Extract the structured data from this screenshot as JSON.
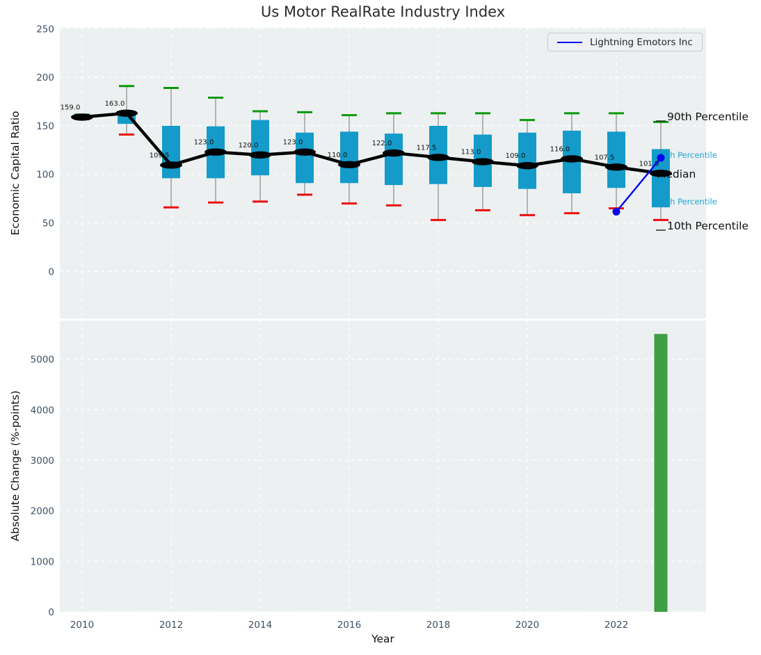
{
  "title": "Us Motor RealRate Industry Index",
  "legend": {
    "label": "Lightning Emotors Inc"
  },
  "colors": {
    "panel_bg": "#edf0f1",
    "grid": "#ffffff",
    "tick_label": "#3e5064",
    "box_fill": "#149bca",
    "whisker": "#8a8a8a",
    "cap_high": "#0a9a0a",
    "cap_low": "#ec0d0d",
    "median_line": "#000000",
    "company_blue": "#0202ee",
    "annotation_cyan": "#1ea7d9",
    "annotation_black": "#101010",
    "bar_green": "#3f9e44"
  },
  "chart_data": [
    {
      "type": "boxplot",
      "panel": "top",
      "title": "Us Motor RealRate Industry Index",
      "ylabel": "Economic Capital Ratio",
      "yticks": [
        0,
        50,
        100,
        150,
        200,
        250
      ],
      "ylim": [
        -48.5,
        251
      ],
      "grid": true,
      "legend_position": "upper right",
      "boxes": [
        {
          "year": 2010,
          "p10": 157,
          "q1": 158,
          "median": 159.0,
          "q3": 160.5,
          "p90": 161.5,
          "label": "159.0"
        },
        {
          "year": 2011,
          "p10": 141,
          "q1": 152,
          "median": 163.0,
          "q3": 162,
          "p90": 191,
          "label": "163.0"
        },
        {
          "year": 2012,
          "p10": 66,
          "q1": 96,
          "median": 109.5,
          "q3": 150,
          "p90": 189,
          "label": "109.5"
        },
        {
          "year": 2013,
          "p10": 71,
          "q1": 96,
          "median": 123.0,
          "q3": 149.5,
          "p90": 179,
          "label": "123.0"
        },
        {
          "year": 2014,
          "p10": 72,
          "q1": 99,
          "median": 120.0,
          "q3": 156,
          "p90": 165,
          "label": "120.0"
        },
        {
          "year": 2015,
          "p10": 79,
          "q1": 91,
          "median": 123.0,
          "q3": 143,
          "p90": 164,
          "label": "123.0"
        },
        {
          "year": 2016,
          "p10": 70,
          "q1": 91,
          "median": 110.0,
          "q3": 144,
          "p90": 161,
          "label": "110.0"
        },
        {
          "year": 2017,
          "p10": 68,
          "q1": 89,
          "median": 122.0,
          "q3": 142,
          "p90": 163,
          "label": "122.0"
        },
        {
          "year": 2018,
          "p10": 53,
          "q1": 90,
          "median": 117.5,
          "q3": 150,
          "p90": 163,
          "label": "117.5"
        },
        {
          "year": 2019,
          "p10": 63,
          "q1": 87,
          "median": 113.0,
          "q3": 141,
          "p90": 163,
          "label": "113.0"
        },
        {
          "year": 2020,
          "p10": 58,
          "q1": 85,
          "median": 109.0,
          "q3": 143,
          "p90": 156,
          "label": "109.0"
        },
        {
          "year": 2021,
          "p10": 60,
          "q1": 80.5,
          "median": 116.0,
          "q3": 145,
          "p90": 163,
          "label": "116.0"
        },
        {
          "year": 2022,
          "p10": 65,
          "q1": 86,
          "median": 107.5,
          "q3": 144,
          "p90": 163,
          "label": "107.5"
        },
        {
          "year": 2023,
          "p10": 53,
          "q1": 66,
          "median": 101.0,
          "q3": 126,
          "p90": 154,
          "label": "101.0"
        }
      ],
      "company_series": {
        "name": "Lightning Emotors Inc",
        "points": [
          {
            "year": 2022,
            "value": 61.5
          },
          {
            "year": 2023,
            "value": 117
          }
        ]
      },
      "annotations": [
        {
          "text": "90th Percentile",
          "value": 160,
          "style": "black",
          "leader": true
        },
        {
          "text": "75th Percentile",
          "value": 120,
          "style": "cyan",
          "leader": false
        },
        {
          "text": "Median",
          "value": 101,
          "style": "black",
          "leader": false
        },
        {
          "text": "25th Percentile",
          "value": 72,
          "style": "cyan",
          "leader": false
        },
        {
          "text": "10th Percentile",
          "value": 47.5,
          "style": "black",
          "leader": true
        }
      ]
    },
    {
      "type": "bar",
      "panel": "bottom",
      "ylabel": "Absolute Change (%-points)",
      "xlabel": "Year",
      "yticks": [
        0,
        1000,
        2000,
        3000,
        4000,
        5000
      ],
      "ylim": [
        0,
        5765
      ],
      "xticks": [
        2010,
        2012,
        2014,
        2016,
        2018,
        2020,
        2022
      ],
      "grid": true,
      "bars": [
        {
          "year": 2023,
          "value": 5500
        }
      ]
    }
  ]
}
